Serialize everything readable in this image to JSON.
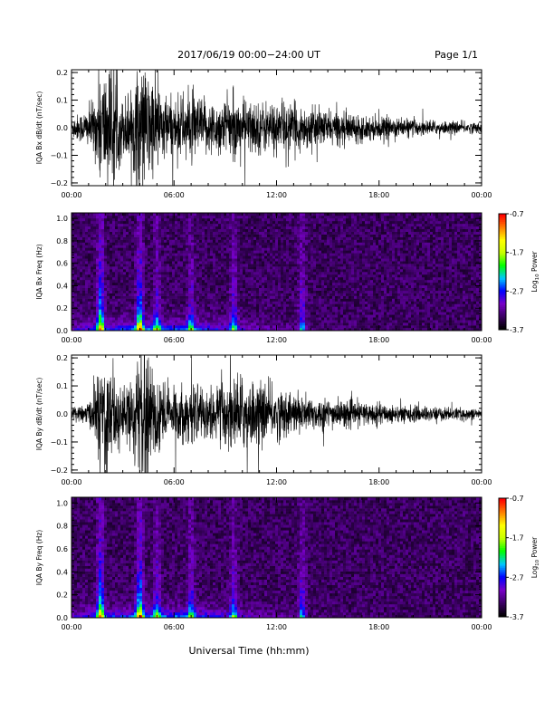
{
  "header": {
    "title": "2017/06/19  00:00−24:00 UT",
    "page": "Page 1/1"
  },
  "footer": {
    "xlabel": "Universal Time (hh:mm)"
  },
  "chart_data": [
    {
      "type": "line",
      "ylabel": "IQA Bx dB/dt (nT/sec)",
      "xlim": [
        "00:00",
        "24:00"
      ],
      "x_ticks": [
        "00:00",
        "06:00",
        "12:00",
        "18:00",
        "00:00"
      ],
      "ylim": [
        -0.21,
        0.21
      ],
      "y_ticks": [
        -0.2,
        -0.1,
        0.0,
        0.1,
        0.2
      ],
      "y_tick_labels": [
        "−0.2",
        "−0.1",
        "0.0",
        "0.1",
        "0.2"
      ],
      "series_color": "#000000",
      "envelope": {
        "hours": [
          0,
          0.5,
          1,
          1.5,
          1.6,
          2.0,
          2.3,
          2.6,
          3.0,
          3.5,
          3.9,
          4.2,
          4.6,
          5.0,
          5.5,
          6.0,
          7.0,
          8.0,
          9.0,
          10.0,
          11.0,
          12.0,
          13.0,
          14.0,
          15.0,
          16.0,
          17.0,
          18.0,
          19.0,
          20.0,
          21.0,
          22.0,
          23.0,
          24.0
        ],
        "amplitude": [
          0.04,
          0.05,
          0.07,
          0.12,
          0.21,
          0.21,
          0.21,
          0.15,
          0.1,
          0.14,
          0.21,
          0.21,
          0.19,
          0.17,
          0.11,
          0.1,
          0.12,
          0.09,
          0.1,
          0.1,
          0.09,
          0.09,
          0.08,
          0.07,
          0.06,
          0.055,
          0.045,
          0.04,
          0.035,
          0.03,
          0.025,
          0.022,
          0.02,
          0.018
        ]
      }
    },
    {
      "type": "heatmap",
      "ylabel": "IQA Bx Freq (Hz)",
      "xlim": [
        "00:00",
        "24:00"
      ],
      "x_ticks": [
        "00:00",
        "06:00",
        "12:00",
        "18:00",
        "00:00"
      ],
      "ylim": [
        0.0,
        1.05
      ],
      "y_ticks": [
        0.0,
        0.2,
        0.4,
        0.6,
        0.8,
        1.0
      ],
      "y_tick_labels": [
        "0.0",
        "0.2",
        "0.4",
        "0.6",
        "0.8",
        "1.0"
      ],
      "colorbar": {
        "label": "Log10 Power",
        "label_base": "Log",
        "label_sub": "10",
        "label_rest": " Power",
        "range": [
          -3.7,
          -0.7
        ],
        "ticks": [
          "-0.7",
          "-1.7",
          "-2.7",
          "-3.7"
        ],
        "tick_values": [
          -0.7,
          -1.7,
          -2.7,
          -3.7
        ],
        "colormap": [
          "#000000",
          "#3c0064",
          "#7800c8",
          "#0000ff",
          "#00c8ff",
          "#00ff00",
          "#c8ff00",
          "#ffff00",
          "#ff8000",
          "#ff0000"
        ]
      },
      "bright_bands_hours": [
        1.7,
        4.0,
        5.0,
        7.0,
        9.5,
        13.5
      ]
    },
    {
      "type": "line",
      "ylabel": "IQA By dB/dt (nT/sec)",
      "xlim": [
        "00:00",
        "24:00"
      ],
      "x_ticks": [
        "00:00",
        "06:00",
        "12:00",
        "18:00",
        "00:00"
      ],
      "ylim": [
        -0.21,
        0.21
      ],
      "y_ticks": [
        -0.2,
        -0.1,
        0.0,
        0.1,
        0.2
      ],
      "y_tick_labels": [
        "−0.2",
        "−0.1",
        "0.0",
        "0.1",
        "0.2"
      ],
      "series_color": "#000000",
      "envelope": {
        "hours": [
          0,
          0.5,
          1,
          1.5,
          1.6,
          2.0,
          2.3,
          2.6,
          3.0,
          3.5,
          3.9,
          4.2,
          4.6,
          5.0,
          5.5,
          6.0,
          7.0,
          8.0,
          9.0,
          10.0,
          11.0,
          12.0,
          13.0,
          14.0,
          15.0,
          16.0,
          17.0,
          18.0,
          19.0,
          20.0,
          21.0,
          22.0,
          23.0,
          24.0
        ],
        "amplitude": [
          0.02,
          0.025,
          0.04,
          0.1,
          0.21,
          0.21,
          0.21,
          0.14,
          0.08,
          0.12,
          0.21,
          0.21,
          0.2,
          0.17,
          0.1,
          0.09,
          0.1,
          0.08,
          0.12,
          0.13,
          0.1,
          0.09,
          0.07,
          0.06,
          0.05,
          0.045,
          0.04,
          0.035,
          0.03,
          0.028,
          0.025,
          0.022,
          0.02,
          0.018
        ]
      }
    },
    {
      "type": "heatmap",
      "ylabel": "IQA By Freq (Hz)",
      "xlim": [
        "00:00",
        "24:00"
      ],
      "x_ticks": [
        "00:00",
        "06:00",
        "12:00",
        "18:00",
        "00:00"
      ],
      "ylim": [
        0.0,
        1.05
      ],
      "y_ticks": [
        0.0,
        0.2,
        0.4,
        0.6,
        0.8,
        1.0
      ],
      "y_tick_labels": [
        "0.0",
        "0.2",
        "0.4",
        "0.6",
        "0.8",
        "1.0"
      ],
      "colorbar": {
        "label": "Log10 Power",
        "label_base": "Log",
        "label_sub": "10",
        "label_rest": " Power",
        "range": [
          -3.7,
          -0.7
        ],
        "ticks": [
          "-0.7",
          "-1.7",
          "-2.7",
          "-3.7"
        ],
        "tick_values": [
          -0.7,
          -1.7,
          -2.7,
          -3.7
        ],
        "colormap": [
          "#000000",
          "#3c0064",
          "#7800c8",
          "#0000ff",
          "#00c8ff",
          "#00ff00",
          "#c8ff00",
          "#ffff00",
          "#ff8000",
          "#ff0000"
        ]
      },
      "bright_bands_hours": [
        1.7,
        4.0,
        5.0,
        7.0,
        9.5,
        13.5
      ]
    }
  ]
}
